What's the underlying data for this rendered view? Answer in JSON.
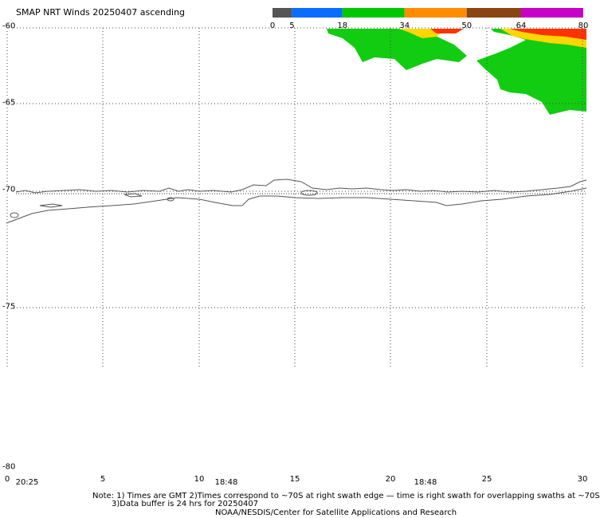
{
  "title": "SMAP NRT Winds 20250407 ascending",
  "colorbar": {
    "ticks": [
      "0",
      "5",
      "18",
      "34",
      "50",
      "64",
      "80"
    ],
    "segments": [
      {
        "from": 0,
        "to": 5,
        "color": "#555555"
      },
      {
        "from": 5,
        "to": 18,
        "color": "#0a6cff"
      },
      {
        "from": 18,
        "to": 34,
        "color": "#00c800"
      },
      {
        "from": 34,
        "to": 50,
        "color": "#ff8c00"
      },
      {
        "from": 50,
        "to": 64,
        "color": "#8b4513"
      },
      {
        "from": 64,
        "to": 80,
        "color": "#c800c8"
      }
    ]
  },
  "axes": {
    "lat_labels": [
      "-60",
      "-65",
      "-70",
      "-75",
      "-80"
    ],
    "lon_labels": [
      "0",
      "5",
      "10",
      "15",
      "20",
      "25",
      "30"
    ],
    "time_labels": [
      "20:25",
      "18:48",
      "18:48"
    ]
  },
  "wind_colors": {
    "moderate": "#11cc11",
    "strong": "#ffd700",
    "gale": "#ff3300"
  },
  "notes": {
    "line1": "Note: 1) Times are GMT 2)Times correspond to ~70S at right swath edge — time is right swath for overlapping swaths at ~70S",
    "line2": "3)Data buffer is 24 hrs for 20250407",
    "credit": "NOAA/NESDIS/Center for Satellite Applications and Research"
  }
}
